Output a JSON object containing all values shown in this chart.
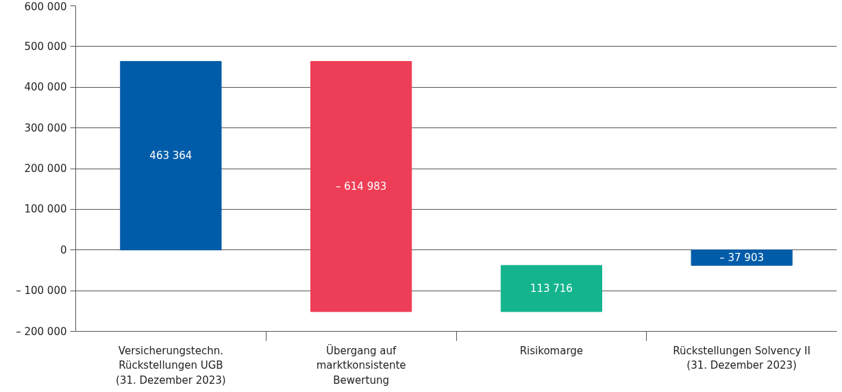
{
  "chart_data": {
    "type": "bar",
    "categories": [
      "Versicherungstechn.\nRückstellungen UGB\n(31. Dezember 2023)",
      "Übergang auf\nmarktkonsistente\nBewertung",
      "Risikomarge",
      "Rückstellungen Solvency II\n(31. Dezember 2023)"
    ],
    "values": [
      463364,
      -614983,
      113716,
      -37903
    ],
    "base": [
      0,
      463364,
      -151619,
      0
    ],
    "colors": [
      "#005ca9",
      "#ee3d56",
      "#14b48e",
      "#005ca9"
    ],
    "value_labels": [
      "463 364",
      "– 614 983",
      "113 716",
      "– 37 903"
    ],
    "ylim": [
      -200000,
      600000
    ],
    "yticks": [
      {
        "value": -200000,
        "label": "– 200 000"
      },
      {
        "value": -100000,
        "label": "– 100 000"
      },
      0,
      {
        "value": 100000,
        "label": "100 000"
      },
      {
        "value": 200000,
        "label": "200 000"
      },
      {
        "value": 300000,
        "label": "300 000"
      },
      {
        "value": 400000,
        "label": "400 000"
      },
      {
        "value": 500000,
        "label": "500 000"
      },
      {
        "value": 600000,
        "label": "600 000"
      }
    ],
    "grid": "y"
  }
}
